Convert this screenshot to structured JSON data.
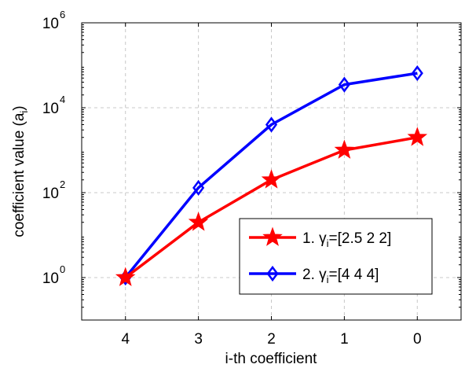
{
  "chart_data": {
    "type": "line",
    "title": "",
    "xlabel": "i-th coefficient",
    "ylabel_main": "coefficient value (a",
    "ylabel_sub": "i",
    "ylabel_close": ")",
    "yscale": "log",
    "ylim": [
      0.1,
      1000000.0
    ],
    "xlim": [
      4.6,
      -0.6
    ],
    "x_ticks": [
      4,
      3,
      2,
      1,
      0
    ],
    "y_ticks": [
      {
        "value": 1,
        "base": "10",
        "exp": "0"
      },
      {
        "value": 100,
        "base": "10",
        "exp": "2"
      },
      {
        "value": 10000,
        "base": "10",
        "exp": "4"
      },
      {
        "value": 1000000,
        "base": "10",
        "exp": "6"
      }
    ],
    "grid": true,
    "legend_position": "lower-right",
    "x": [
      4,
      3,
      2,
      1,
      0
    ],
    "series": [
      {
        "name_prefix": "1. ",
        "name_symbol": "γ",
        "name_sub": "i",
        "name_rest": "=[2.5 2 2]",
        "color": "#ff0000",
        "marker": "star",
        "values": [
          1,
          20,
          200,
          1000,
          2000
        ]
      },
      {
        "name_prefix": "2. ",
        "name_symbol": "γ",
        "name_sub": "i",
        "name_rest": "=[4 4 4]",
        "color": "#0000ff",
        "marker": "diamond",
        "values": [
          1,
          130,
          4000,
          35000,
          65000
        ]
      }
    ]
  }
}
